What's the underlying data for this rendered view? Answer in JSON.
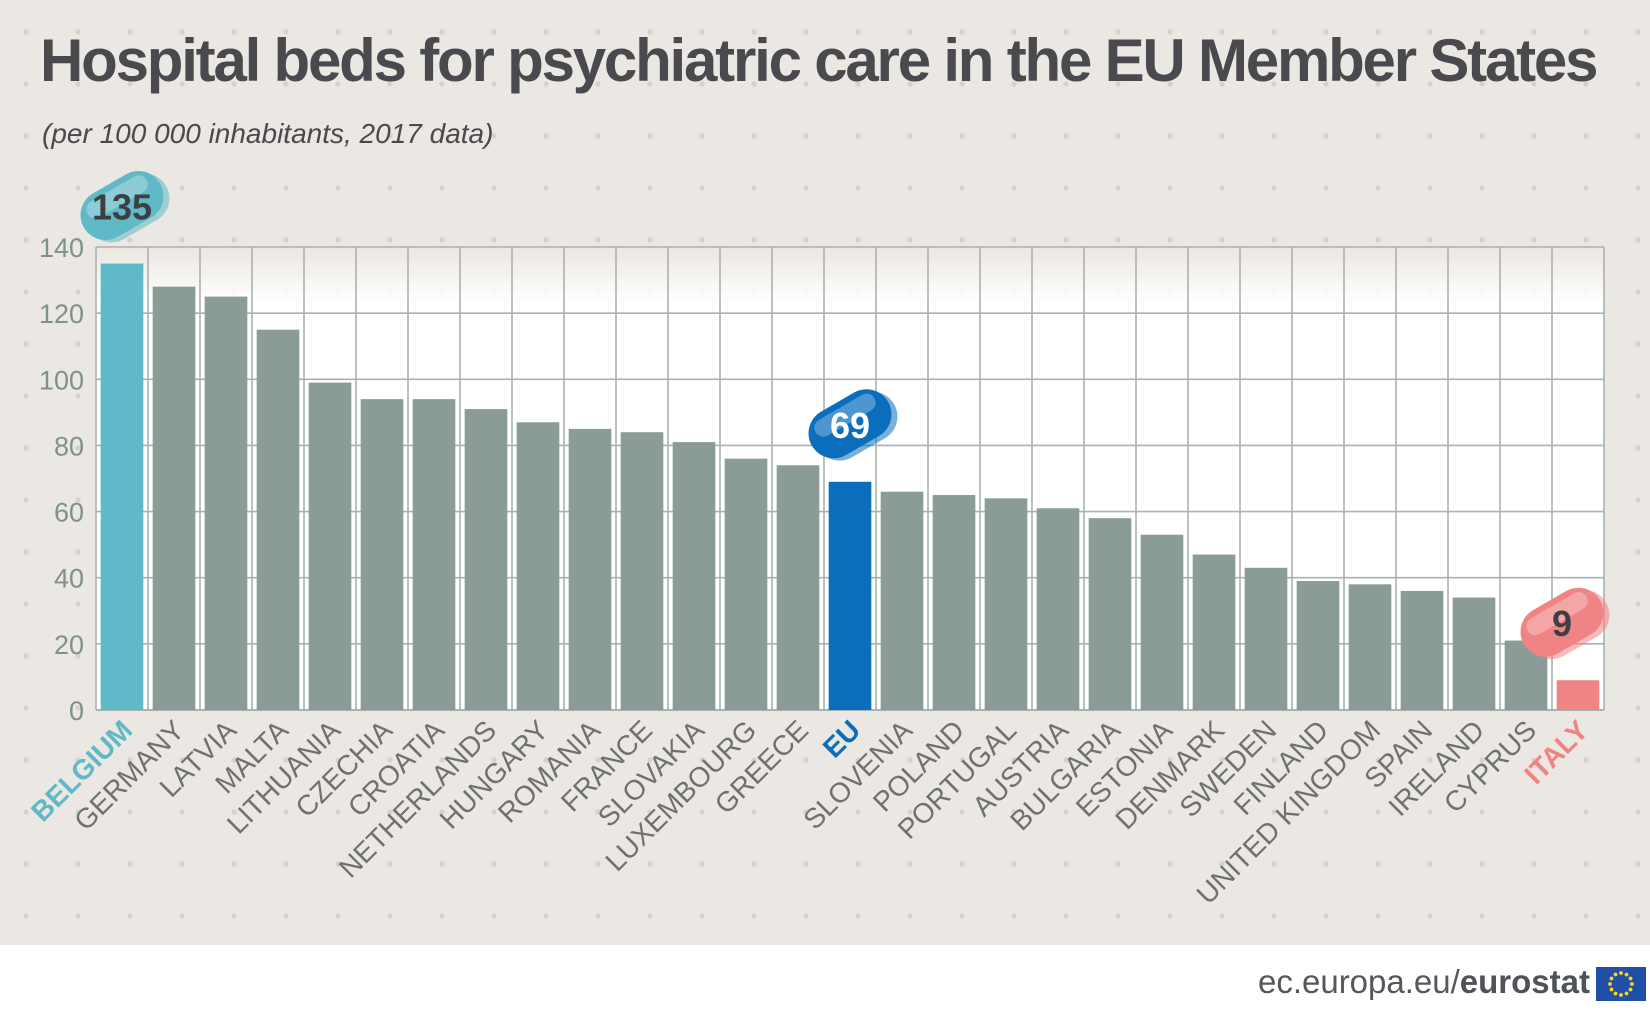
{
  "header": {
    "title": "Hospital beds for psychiatric care in the EU Member States",
    "subtitle": "(per 100 000 inhabitants, 2017 data)"
  },
  "footer": {
    "source_plain": "ec.europa.eu/",
    "source_brand": "eurostat",
    "flag_icon": "eu-flag-icon"
  },
  "colors": {
    "default_bar": "#8a9b98",
    "highest": "#5fb9c6",
    "eu": "#0a6ebd",
    "lowest": "#f08383",
    "grid": "#a9b2b0",
    "axis_text": "#7f918e",
    "category_text": "#6f716f"
  },
  "chart_data": {
    "type": "bar",
    "title": "Hospital beds for psychiatric care in the EU Member States",
    "subtitle": "(per 100 000 inhabitants, 2017 data)",
    "categories": [
      "BELGIUM",
      "GERMANY",
      "LATVIA",
      "MALTA",
      "LITHUANIA",
      "CZECHIA",
      "CROATIA",
      "NETHERLANDS",
      "HUNGARY",
      "ROMANIA",
      "FRANCE",
      "SLOVAKIA",
      "LUXEMBOURG",
      "GREECE",
      "EU",
      "SLOVENIA",
      "POLAND",
      "PORTUGAL",
      "AUSTRIA",
      "BULGARIA",
      "ESTONIA",
      "DENMARK",
      "SWEDEN",
      "FINLAND",
      "UNITED KINGDOM",
      "SPAIN",
      "IRELAND",
      "CYPRUS",
      "ITALY"
    ],
    "values": [
      135,
      128,
      125,
      115,
      99,
      94,
      94,
      91,
      87,
      85,
      84,
      81,
      76,
      74,
      69,
      66,
      65,
      64,
      61,
      58,
      53,
      47,
      43,
      39,
      38,
      36,
      34,
      21,
      9
    ],
    "highlights": [
      {
        "category": "BELGIUM",
        "label": "135",
        "role": "highest"
      },
      {
        "category": "EU",
        "label": "69",
        "role": "eu"
      },
      {
        "category": "ITALY",
        "label": "9",
        "role": "lowest"
      }
    ],
    "yticks": [
      0,
      20,
      40,
      60,
      80,
      100,
      120,
      140
    ],
    "ylim": [
      0,
      140
    ],
    "xlabel": "",
    "ylabel": "",
    "grid": true,
    "legend": "none"
  }
}
